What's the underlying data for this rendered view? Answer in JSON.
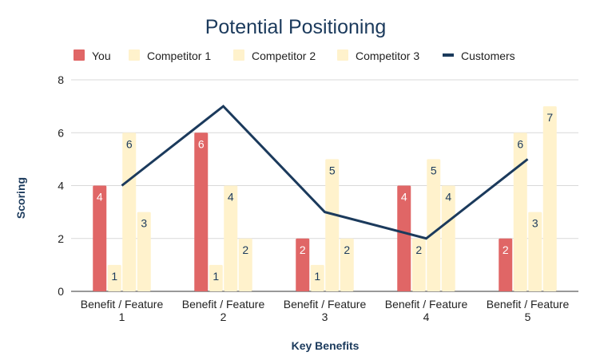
{
  "chart_data": {
    "type": "bar",
    "title": "Potential Positioning",
    "xlabel": "Key Benefits",
    "ylabel": "Scoring",
    "ylim": [
      0,
      8
    ],
    "yticks": [
      0,
      2,
      4,
      6,
      8
    ],
    "grid": true,
    "legend_position": "top",
    "categories": [
      [
        "Benefit / Feature",
        "1"
      ],
      [
        "Benefit / Feature",
        "2"
      ],
      [
        "Benefit / Feature",
        "3"
      ],
      [
        "Benefit / Feature",
        "4"
      ],
      [
        "Benefit / Feature",
        "5"
      ]
    ],
    "series": [
      {
        "name": "You",
        "type": "bar",
        "color": "#e06666",
        "label_color": "#ffffff",
        "values": [
          4,
          6,
          2,
          4,
          2
        ]
      },
      {
        "name": "Competitor 1",
        "type": "bar",
        "color": "#fff2cc",
        "label_color": "#1b3a5c",
        "values": [
          1,
          1,
          1,
          2,
          6
        ]
      },
      {
        "name": "Competitor 2",
        "type": "bar",
        "color": "#fff2cc",
        "label_color": "#1b3a5c",
        "values": [
          6,
          4,
          5,
          5,
          3
        ]
      },
      {
        "name": "Competitor 3",
        "type": "bar",
        "color": "#fff2cc",
        "label_color": "#1b3a5c",
        "values": [
          3,
          2,
          2,
          4,
          7
        ]
      },
      {
        "name": "Customers",
        "type": "line",
        "color": "#1b3a5c",
        "values": [
          4,
          7,
          3,
          2,
          5
        ]
      }
    ]
  }
}
